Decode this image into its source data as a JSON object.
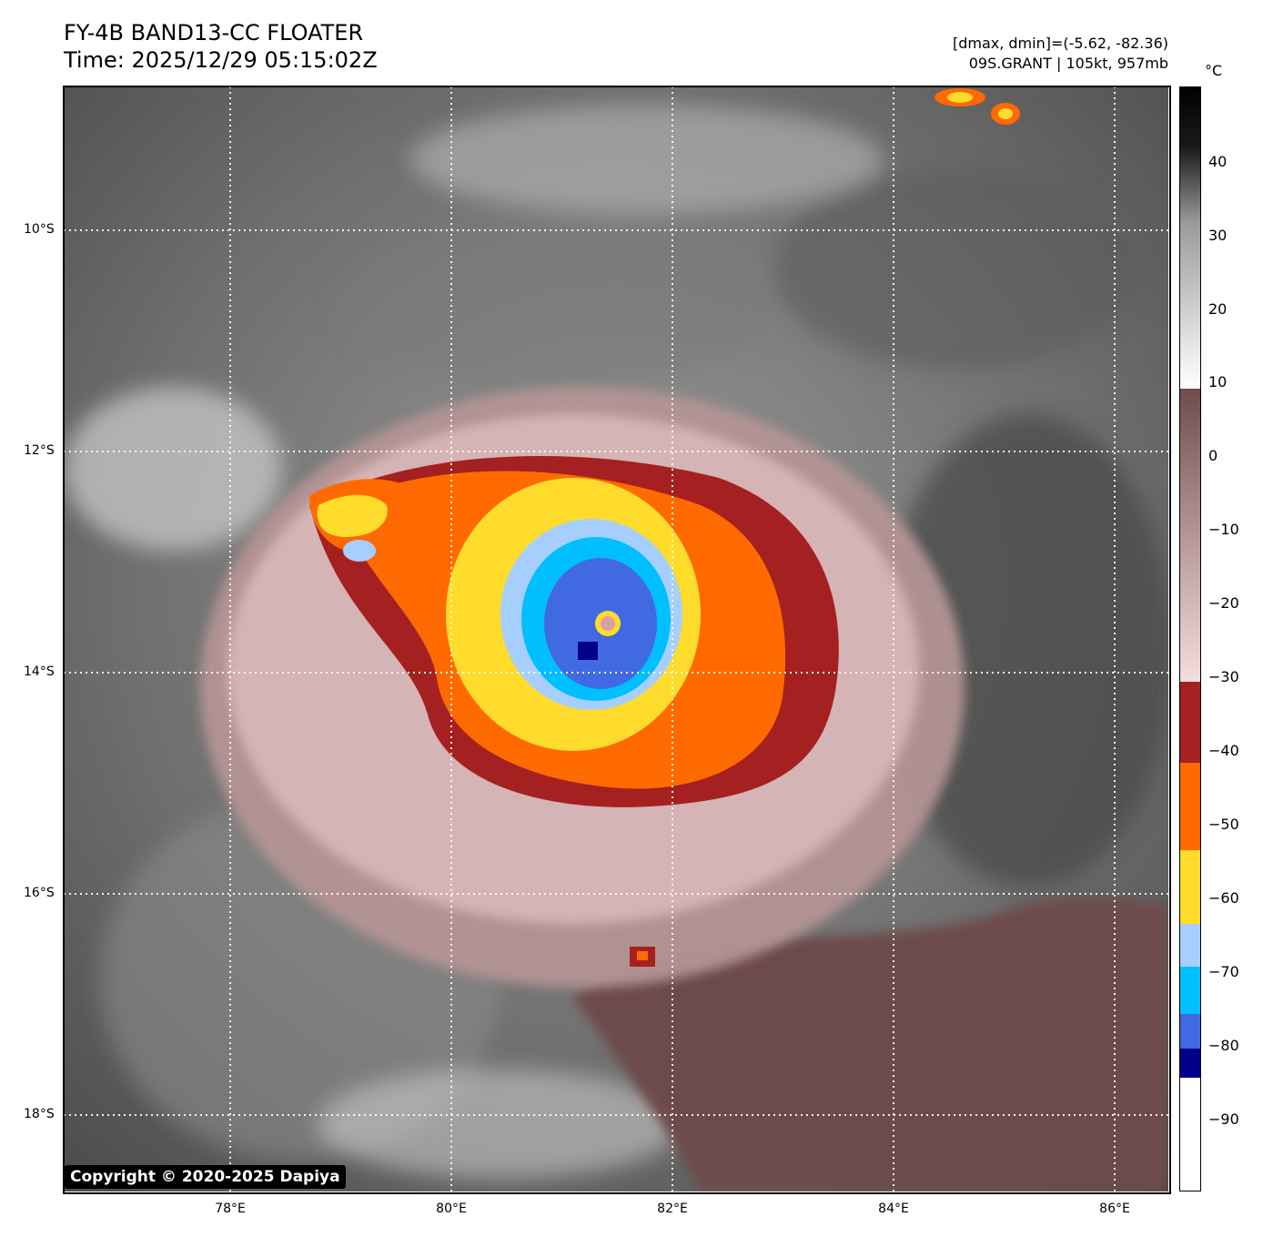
{
  "header": {
    "title_line1": "FY-4B BAND13-CC FLOATER",
    "title_line2": "Time: 2025/12/29 05:15:02Z",
    "info_line1": "[dmax, dmin]=(-5.62, -82.36)",
    "info_line2": "09S.GRANT | 105kt, 957mb"
  },
  "map": {
    "lat_labels": [
      "10°S",
      "12°S",
      "14°S",
      "16°S",
      "18°S"
    ],
    "lon_labels": [
      "78°E",
      "80°E",
      "82°E",
      "84°E",
      "86°E"
    ],
    "gridlines": "dotted",
    "storm_center_label": "",
    "copyright": "Copyright © 2020-2025 Dapiya"
  },
  "colorbar": {
    "unit": "°C",
    "tick_labels": [
      "40",
      "30",
      "20",
      "10",
      "0",
      "−10",
      "−20",
      "−30",
      "−40",
      "−50",
      "−60",
      "−70",
      "−80",
      "−90"
    ],
    "colors": {
      "black": "#000000",
      "gray_dark": "#3a3a3a",
      "gray_light": "#e8e8e8",
      "warm_brown": "#6e4c4c",
      "pink": "#f5dede",
      "dark_red": "#a52020",
      "orange": "#ff6a00",
      "yellow": "#ffdb2c",
      "light_blue": "#a6cfff",
      "cyan": "#00bfff",
      "royal_blue": "#4169e1",
      "navy": "#00008b",
      "white": "#ffffff"
    }
  }
}
